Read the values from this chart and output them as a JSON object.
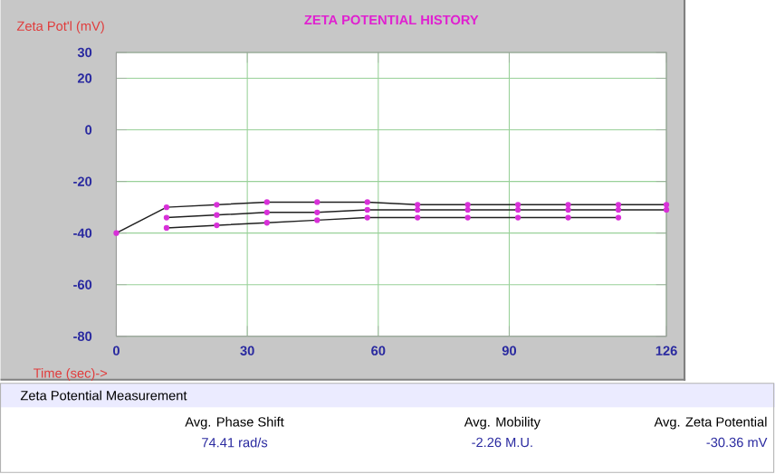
{
  "chart_data": {
    "type": "line",
    "title": "ZETA POTENTIAL HISTORY",
    "xlabel": "Time (sec)->",
    "ylabel": "Zeta Pot'l (mV)",
    "xlim": [
      0,
      126
    ],
    "xticks": [
      0,
      30,
      60,
      90,
      126
    ],
    "ylim": [
      -80,
      30
    ],
    "yticks": [
      -80,
      -60,
      -40,
      -20,
      0,
      20,
      30
    ],
    "grid": true,
    "marker": "circle",
    "line_style": "solid",
    "series": [
      {
        "color": "#202020",
        "x": [
          0,
          11.5,
          23,
          34.5,
          46,
          57.5,
          69,
          80.5,
          92,
          103.5,
          115,
          126
        ],
        "values": [
          -40,
          -30,
          -29,
          -28,
          -28,
          -28,
          -29,
          -29,
          -29,
          -29,
          -29,
          -29
        ]
      },
      {
        "color": "#202020",
        "x": [
          11.5,
          23,
          34.5,
          46,
          57.5,
          69,
          80.5,
          92,
          103.5,
          115,
          126
        ],
        "values": [
          -34,
          -33,
          -32,
          -32,
          -31,
          -31,
          -31,
          -31,
          -31,
          -31,
          -31
        ]
      },
      {
        "color": "#202020",
        "x": [
          11.5,
          23,
          34.5,
          46,
          57.5,
          69,
          80.5,
          92,
          103.5,
          115
        ],
        "values": [
          -38,
          -37,
          -36,
          -35,
          -34,
          -34,
          -34,
          -34,
          -34,
          -34
        ]
      }
    ],
    "annotations": [
      "Zeta Potential Measurement",
      "Avg. Phase Shift",
      "74.41 rad/s",
      "Avg. Mobility",
      "-2.26 M.U.",
      "Avg. Zeta Potential",
      "-30.36 mV"
    ]
  }
}
